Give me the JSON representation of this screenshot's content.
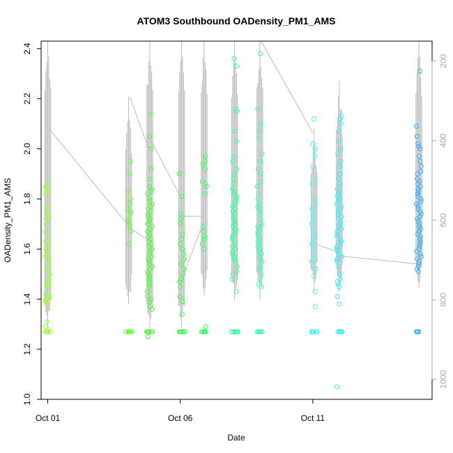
{
  "chart_data": {
    "type": "scatter",
    "title": "ATOM3 Southbound OADensity_PM1_AMS",
    "xlabel": "Date",
    "ylabel": "OADensity_PM1_AMS",
    "x_ticks": [
      "Oct 01",
      "Oct 06",
      "Oct 11"
    ],
    "x_tick_days": [
      1,
      6,
      11
    ],
    "xlim_days": [
      0.75,
      15.5
    ],
    "ylim": [
      1.0,
      2.43
    ],
    "y_ticks": [
      "1.0",
      "1.2",
      "1.4",
      "1.6",
      "1.8",
      "2.0",
      "2.2",
      "2.4"
    ],
    "y_tick_values": [
      1.0,
      1.2,
      1.4,
      1.6,
      1.8,
      2.0,
      2.2,
      2.4
    ],
    "right_axis": {
      "label": "",
      "ticks": [
        "200",
        "400",
        "600",
        "800",
        "1000"
      ],
      "tick_values": [
        200,
        400,
        600,
        800,
        1000
      ],
      "lim_reversed": [
        1050,
        150
      ],
      "color": "#aaaaaa"
    },
    "grid": false,
    "legend": "none",
    "marker": "open-circle",
    "color_scale": "days from yellow-green to blue",
    "fill_value": 1.27,
    "flights": [
      {
        "day": 1.0,
        "color": "#99ff33",
        "values": [
          1.87,
          1.85,
          1.84,
          1.83,
          1.82,
          1.77,
          1.75,
          1.74,
          1.73,
          1.72,
          1.7,
          1.67,
          1.65,
          1.63,
          1.61,
          1.6,
          1.59,
          1.58,
          1.57,
          1.56,
          1.55,
          1.53,
          1.52,
          1.5,
          1.48,
          1.47,
          1.46,
          1.45,
          1.42,
          1.41,
          1.4,
          1.39,
          1.38,
          1.31,
          1.29,
          1.28
        ]
      },
      {
        "day": 4.05,
        "color": "#66ff33",
        "values": [
          1.95,
          1.9,
          1.83,
          1.8,
          1.78,
          1.76,
          1.75,
          1.74,
          1.72,
          1.71,
          1.7,
          1.69,
          1.67,
          1.62
        ]
      },
      {
        "day": 4.85,
        "color": "#44ff33",
        "values": [
          2.14,
          2.05,
          2.0,
          1.92,
          1.88,
          1.85,
          1.84,
          1.83,
          1.82,
          1.8,
          1.79,
          1.78,
          1.77,
          1.76,
          1.75,
          1.74,
          1.73,
          1.72,
          1.71,
          1.7,
          1.69,
          1.68,
          1.67,
          1.66,
          1.65,
          1.64,
          1.63,
          1.62,
          1.61,
          1.6,
          1.59,
          1.58,
          1.57,
          1.56,
          1.55,
          1.54,
          1.53,
          1.52,
          1.51,
          1.5,
          1.49,
          1.48,
          1.47,
          1.46,
          1.45,
          1.43,
          1.41,
          1.4,
          1.39,
          1.37,
          1.36,
          1.25
        ]
      },
      {
        "day": 6.05,
        "color": "#33ff44",
        "values": [
          1.9,
          1.81,
          1.74,
          1.72,
          1.7,
          1.66,
          1.64,
          1.62,
          1.6,
          1.58,
          1.56,
          1.54,
          1.52,
          1.5,
          1.48,
          1.47,
          1.45,
          1.41,
          1.39,
          1.34
        ]
      },
      {
        "day": 6.9,
        "color": "#33ff66",
        "values": [
          1.97,
          1.95,
          1.94,
          1.92,
          1.87,
          1.86,
          1.85,
          1.82,
          1.69,
          1.67,
          1.65,
          1.64,
          1.62,
          1.6,
          1.29
        ]
      },
      {
        "day": 8.05,
        "color": "#33ff99",
        "values": [
          2.36,
          2.33,
          2.16,
          2.15,
          2.07,
          2.03,
          1.97,
          1.95,
          1.92,
          1.9,
          1.88,
          1.86,
          1.84,
          1.83,
          1.82,
          1.81,
          1.8,
          1.79,
          1.78,
          1.77,
          1.76,
          1.75,
          1.74,
          1.73,
          1.72,
          1.71,
          1.7,
          1.69,
          1.68,
          1.67,
          1.66,
          1.65,
          1.64,
          1.63,
          1.62,
          1.61,
          1.6,
          1.59,
          1.58,
          1.57,
          1.56,
          1.55,
          1.53,
          1.51,
          1.5,
          1.48,
          1.43
        ]
      },
      {
        "day": 9.0,
        "color": "#33ffbb",
        "values": [
          2.38,
          2.16,
          2.1,
          2.07,
          2.04,
          1.98,
          1.95,
          1.92,
          1.9,
          1.87,
          1.85,
          1.82,
          1.8,
          1.78,
          1.77,
          1.76,
          1.75,
          1.74,
          1.72,
          1.7,
          1.69,
          1.68,
          1.67,
          1.66,
          1.65,
          1.64,
          1.63,
          1.62,
          1.61,
          1.6,
          1.59,
          1.58,
          1.57,
          1.56,
          1.55,
          1.53,
          1.52,
          1.5,
          1.48,
          1.46,
          1.45
        ]
      },
      {
        "day": 11.05,
        "color": "#33ffff",
        "values": [
          2.12,
          2.02,
          2.0,
          1.97,
          1.93,
          1.88,
          1.86,
          1.8,
          1.78,
          1.76,
          1.74,
          1.72,
          1.7,
          1.68,
          1.66,
          1.64,
          1.62,
          1.6,
          1.58,
          1.56,
          1.55,
          1.52,
          1.49,
          1.43,
          1.37
        ]
      },
      {
        "day": 12.0,
        "color": "#33eeff",
        "values": [
          2.13,
          2.12,
          2.1,
          2.07,
          2.03,
          2.0,
          1.98,
          1.95,
          1.93,
          1.9,
          1.88,
          1.86,
          1.84,
          1.83,
          1.82,
          1.81,
          1.8,
          1.79,
          1.78,
          1.77,
          1.76,
          1.75,
          1.74,
          1.73,
          1.72,
          1.71,
          1.7,
          1.69,
          1.68,
          1.67,
          1.66,
          1.65,
          1.64,
          1.63,
          1.62,
          1.61,
          1.6,
          1.59,
          1.58,
          1.57,
          1.56,
          1.55,
          1.53,
          1.5,
          1.48,
          1.47,
          1.46,
          1.45,
          1.41,
          1.38,
          1.05
        ]
      },
      {
        "day": 15.0,
        "color": "#33aaff",
        "values": [
          2.31,
          2.09,
          2.05,
          2.02,
          2.01,
          2.0,
          1.97,
          1.95,
          1.93,
          1.91,
          1.9,
          1.88,
          1.87,
          1.86,
          1.85,
          1.84,
          1.83,
          1.82,
          1.81,
          1.8,
          1.79,
          1.78,
          1.77,
          1.76,
          1.75,
          1.74,
          1.73,
          1.72,
          1.71,
          1.7,
          1.69,
          1.68,
          1.67,
          1.66,
          1.65,
          1.64,
          1.63,
          1.62,
          1.61,
          1.6,
          1.59,
          1.58,
          1.57,
          1.56,
          1.55,
          1.54,
          1.53,
          1.52,
          1.51
        ]
      }
    ],
    "altitude_trace": {
      "color": "#bbbbbb",
      "segments": [
        {
          "day": 1.0,
          "top": 150,
          "bottom": 870
        },
        {
          "day": 4.05,
          "top": 290,
          "bottom": 810
        },
        {
          "day": 4.85,
          "top": 150,
          "bottom": 870
        },
        {
          "day": 6.05,
          "top": 150,
          "bottom": 870
        },
        {
          "day": 6.9,
          "top": 150,
          "bottom": 790
        },
        {
          "day": 8.05,
          "top": 150,
          "bottom": 800
        },
        {
          "day": 9.0,
          "top": 150,
          "bottom": 800
        },
        {
          "day": 11.05,
          "top": 370,
          "bottom": 780
        },
        {
          "day": 12.0,
          "top": 250,
          "bottom": 780
        },
        {
          "day": 15.0,
          "top": 150,
          "bottom": 770
        }
      ],
      "transits": [
        {
          "from_day": 1.05,
          "from_alt": 370,
          "to_day": 4.0,
          "to_alt": 610
        },
        {
          "from_day": 4.1,
          "from_alt": 290,
          "to_day": 4.8,
          "to_alt": 420
        },
        {
          "from_day": 4.1,
          "from_alt": 620,
          "to_day": 4.8,
          "to_alt": 650
        },
        {
          "from_day": 4.9,
          "from_alt": 400,
          "to_day": 6.0,
          "to_alt": 540
        },
        {
          "from_day": 6.1,
          "from_alt": 740,
          "to_day": 6.85,
          "to_alt": 610
        },
        {
          "from_day": 6.1,
          "from_alt": 590,
          "to_day": 6.85,
          "to_alt": 590
        },
        {
          "from_day": 9.05,
          "from_alt": 150,
          "to_day": 11.0,
          "to_alt": 380
        },
        {
          "from_day": 11.1,
          "from_alt": 660,
          "to_day": 11.95,
          "to_alt": 680
        },
        {
          "from_day": 12.05,
          "from_alt": 690,
          "to_day": 14.95,
          "to_alt": 710
        }
      ]
    }
  }
}
